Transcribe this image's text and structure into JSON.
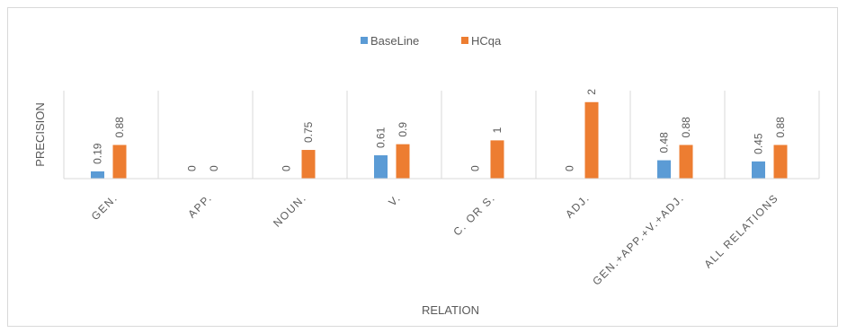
{
  "chart_data": {
    "type": "bar",
    "title": "",
    "xlabel": "RELATION",
    "ylabel": "PRECISION",
    "categories": [
      "GEN.",
      "APP.",
      "NOUN.",
      "V.",
      "C. OR S.",
      "ADJ.",
      "GEN.+APP.+V.+ADJ.",
      "ALL RELATIONS"
    ],
    "series": [
      {
        "name": "BaseLine",
        "color": "#5b9bd5",
        "values": [
          0.19,
          0,
          0,
          0.61,
          0,
          0,
          0.48,
          0.45
        ],
        "labels": [
          "0.19",
          "0",
          "0",
          "0.61",
          "0",
          "0",
          "0.48",
          "0.45"
        ]
      },
      {
        "name": "HCqa",
        "color": "#ed7d31",
        "values": [
          0.88,
          0,
          0.75,
          0.9,
          1,
          2,
          0.88,
          0.88
        ],
        "labels": [
          "0.88",
          "0",
          "0.75",
          "0.9",
          "1",
          "2",
          "0.88",
          "0.88"
        ]
      }
    ],
    "ylim": [
      0,
      2.3
    ],
    "grid": "vertical category separators",
    "legend_position": "top"
  }
}
